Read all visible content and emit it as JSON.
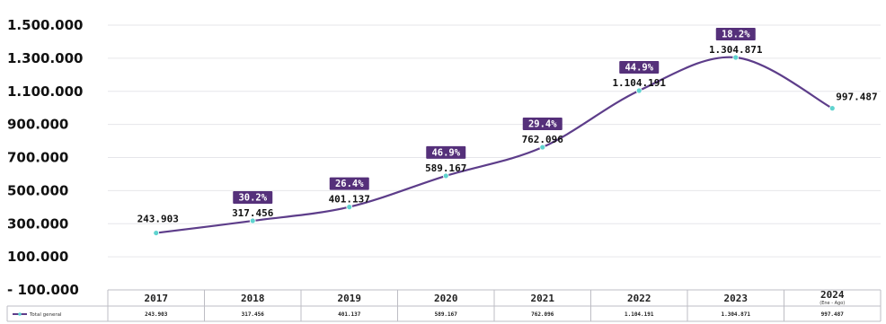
{
  "chart_data": {
    "type": "line",
    "categories": [
      "2017",
      "2018",
      "2019",
      "2020",
      "2021",
      "2022",
      "2023",
      "2024"
    ],
    "category_sublabels": [
      "",
      "",
      "",
      "",
      "",
      "",
      "",
      "(Ene - Ago)"
    ],
    "series": [
      {
        "name": "Total general",
        "values": [
          243903,
          317456,
          401137,
          589167,
          762096,
          1104191,
          1304871,
          997487
        ],
        "value_labels": [
          "243.903",
          "317.456",
          "401.137",
          "589.167",
          "762.096",
          "1.104.191",
          "1.304.871",
          "997.487"
        ],
        "table_values": [
          "243.903",
          "317.456",
          "401.137",
          "589.167",
          "762.096",
          "1.104.191",
          "1.304.871",
          "997.487"
        ],
        "color": "#5d3d8a",
        "marker_color": "#5fd3cf"
      }
    ],
    "growth_labels": [
      "",
      "30.2%",
      "26.4%",
      "46.9%",
      "29.4%",
      "44.9%",
      "18.2%",
      ""
    ],
    "growth_badge_color": "#55307a",
    "yticks": [
      -100000,
      100000,
      300000,
      500000,
      700000,
      900000,
      1100000,
      1300000,
      1500000
    ],
    "ytick_labels": [
      "- 100.000",
      "100.000",
      "300.000",
      "500.000",
      "700.000",
      "900.000",
      "1.100.000",
      "1.300.000",
      "1.500.000"
    ],
    "ylim": [
      -100000,
      1500000
    ],
    "grid": true,
    "legend": "bottom-left table",
    "title": "",
    "xlabel": "",
    "ylabel": ""
  }
}
